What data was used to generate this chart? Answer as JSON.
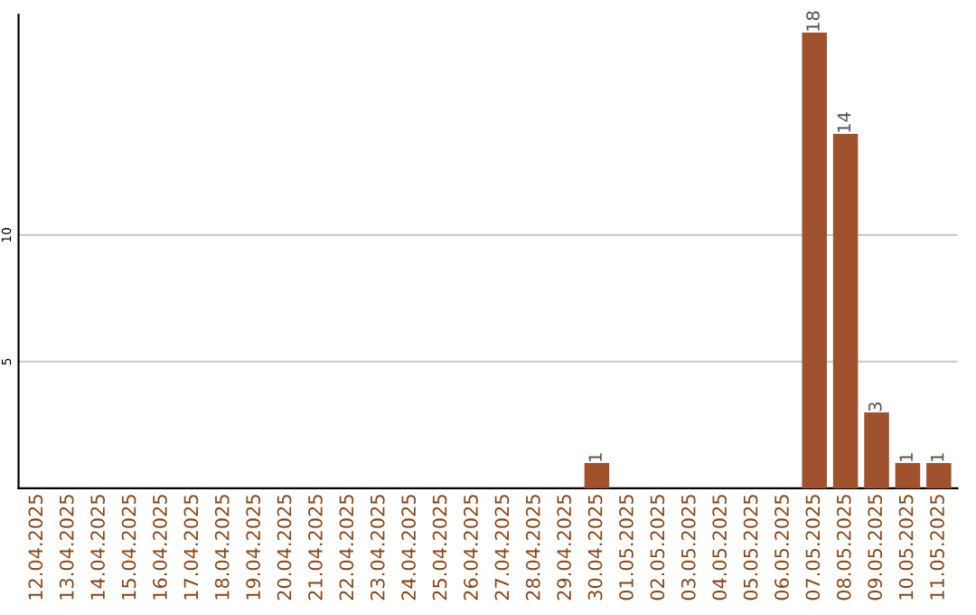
{
  "chart_data": {
    "type": "bar",
    "categories": [
      "12.04.2025",
      "13.04.2025",
      "14.04.2025",
      "15.04.2025",
      "16.04.2025",
      "17.04.2025",
      "18.04.2025",
      "19.04.2025",
      "20.04.2025",
      "21.04.2025",
      "22.04.2025",
      "23.04.2025",
      "24.04.2025",
      "25.04.2025",
      "26.04.2025",
      "27.04.2025",
      "28.04.2025",
      "29.04.2025",
      "30.04.2025",
      "01.05.2025",
      "02.05.2025",
      "03.05.2025",
      "04.05.2025",
      "05.05.2025",
      "06.05.2025",
      "07.05.2025",
      "08.05.2025",
      "09.05.2025",
      "10.05.2025",
      "11.05.2025"
    ],
    "values": [
      0,
      0,
      0,
      0,
      0,
      0,
      0,
      0,
      0,
      0,
      0,
      0,
      0,
      0,
      0,
      0,
      0,
      0,
      1,
      0,
      0,
      0,
      0,
      0,
      0,
      18,
      14,
      3,
      1,
      1
    ],
    "value_labels": [
      null,
      null,
      null,
      null,
      null,
      null,
      null,
      null,
      null,
      null,
      null,
      null,
      null,
      null,
      null,
      null,
      null,
      null,
      "1",
      null,
      null,
      null,
      null,
      null,
      null,
      "18",
      "14",
      "3",
      "1",
      "1"
    ],
    "color": "#a0522d",
    "ylim": [
      0,
      18.7
    ],
    "yticks": [
      5,
      10
    ],
    "grid": "y",
    "legend": false
  }
}
